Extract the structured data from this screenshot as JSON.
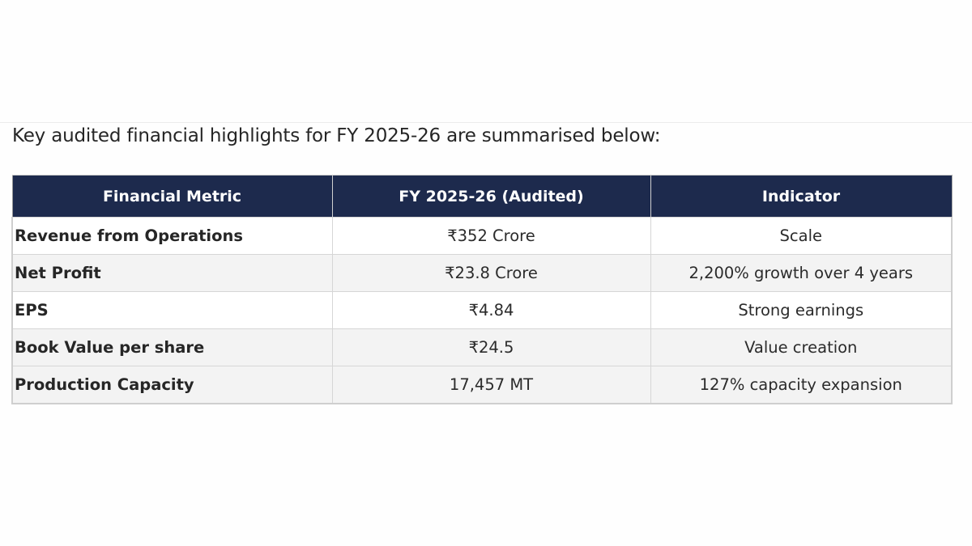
{
  "intro_text": "Key audited financial highlights for FY 2025-26 are summarised below:",
  "table": {
    "headers": [
      "Financial Metric",
      "FY 2025-26 (Audited)",
      "Indicator"
    ],
    "rows": [
      {
        "metric": "Revenue from Operations",
        "value": "₹352 Crore",
        "indicator": "Scale"
      },
      {
        "metric": "Net Profit",
        "value": "₹23.8 Crore",
        "indicator": "2,200% growth over 4 years"
      },
      {
        "metric": "EPS",
        "value": "₹4.84",
        "indicator": "Strong earnings"
      },
      {
        "metric": "Book Value per share",
        "value": "₹24.5",
        "indicator": "Value creation"
      },
      {
        "metric": "Production Capacity",
        "value": "17,457 MT",
        "indicator": "127% capacity expansion"
      }
    ]
  },
  "colors": {
    "header_bg": "#1d2a4d",
    "header_text": "#ffffff",
    "stripe_bg": "#f3f3f3"
  }
}
